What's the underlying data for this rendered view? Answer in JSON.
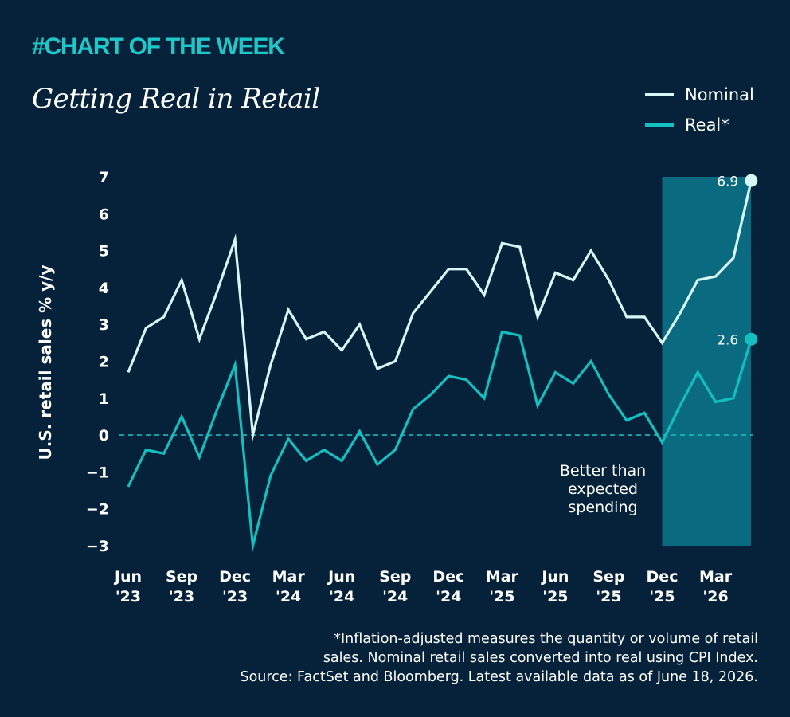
{
  "header": {
    "tag": "#CHART OF THE WEEK",
    "title": "Getting Real in Retail"
  },
  "legend": [
    {
      "label": "Nominal",
      "color": "#d8f6f4"
    },
    {
      "label": "Real*",
      "color": "#14bfbf"
    }
  ],
  "annotation": {
    "lines": [
      "Better than",
      "expected",
      "spending"
    ],
    "highlight_color": "#0a6b80"
  },
  "footnote": [
    "*Inflation-adjusted measures the quantity or volume of retail",
    "sales. Nominal retail sales converted into real using CPI Index.",
    "Source: FactSet and Bloomberg. Latest available data as of June 18, 2026."
  ],
  "chart_data": {
    "type": "line",
    "ylabel": "U.S. retail sales % y/y",
    "ylim": [
      -3,
      7
    ],
    "yticks": [
      "7",
      "6",
      "5",
      "4",
      "3",
      "2",
      "1",
      "0",
      "−1",
      "−2",
      "−3"
    ],
    "ytick_values": [
      7,
      6,
      5,
      4,
      3,
      2,
      1,
      0,
      -1,
      -2,
      -3
    ],
    "xtick_labels": [
      [
        "Jun",
        "'23"
      ],
      [
        "Sep",
        "'23"
      ],
      [
        "Dec",
        "'23"
      ],
      [
        "Mar",
        "'24"
      ],
      [
        "Jun",
        "'24"
      ],
      [
        "Sep",
        "'24"
      ],
      [
        "Dec",
        "'24"
      ],
      [
        "Mar",
        "'25"
      ],
      [
        "Jun",
        "'25"
      ],
      [
        "Sep",
        "'25"
      ],
      [
        "Dec",
        "'25"
      ],
      [
        "Mar",
        "'26"
      ]
    ],
    "x": [
      "Jun '23",
      "Jul '23",
      "Aug '23",
      "Sep '23",
      "Oct '23",
      "Nov '23",
      "Dec '23",
      "Jan '24",
      "Feb '24",
      "Mar '24",
      "Apr '24",
      "May '24",
      "Jun '24",
      "Jul '24",
      "Aug '24",
      "Sep '24",
      "Oct '24",
      "Nov '24",
      "Dec '24",
      "Jan '25",
      "Feb '25",
      "Mar '25",
      "Apr '25",
      "May '25",
      "Jun '25",
      "Jul '25",
      "Aug '25",
      "Sep '25",
      "Oct '25",
      "Nov '25",
      "Dec '25",
      "Jan '26",
      "Feb '26",
      "Mar '26",
      "Apr '26",
      "May '26"
    ],
    "series": [
      {
        "name": "Nominal",
        "color": "#d8f6f4",
        "values": [
          1.7,
          2.9,
          3.2,
          4.2,
          2.6,
          3.9,
          5.3,
          0.0,
          1.9,
          3.4,
          2.6,
          2.8,
          2.3,
          3.0,
          1.8,
          2.0,
          3.3,
          3.9,
          4.5,
          4.5,
          3.8,
          5.2,
          5.1,
          3.2,
          4.4,
          4.2,
          5.0,
          4.2,
          3.2,
          3.2,
          2.5,
          3.3,
          4.2,
          4.3,
          4.8,
          6.9
        ]
      },
      {
        "name": "Real*",
        "color": "#14bfbf",
        "values": [
          -1.4,
          -0.4,
          -0.5,
          0.5,
          -0.6,
          0.7,
          1.9,
          -3.0,
          -1.1,
          -0.1,
          -0.7,
          -0.4,
          -0.7,
          0.1,
          -0.8,
          -0.4,
          0.7,
          1.1,
          1.6,
          1.5,
          1.0,
          2.8,
          2.7,
          0.8,
          1.7,
          1.4,
          2.0,
          1.1,
          0.4,
          0.6,
          -0.2,
          0.8,
          1.7,
          0.9,
          1.0,
          2.6
        ]
      }
    ],
    "highlight_start": "Dec '25",
    "end_labels": [
      "6.9",
      "2.6"
    ],
    "zero_line": "dashed",
    "grid": false
  }
}
